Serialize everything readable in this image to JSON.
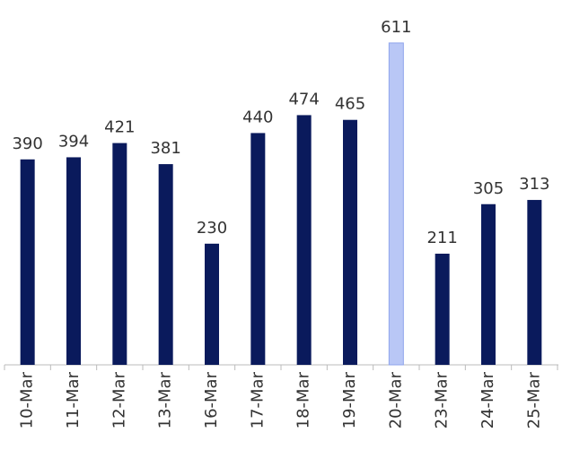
{
  "chart_data": {
    "type": "bar",
    "categories": [
      "10-Mar",
      "11-Mar",
      "12-Mar",
      "13-Mar",
      "16-Mar",
      "17-Mar",
      "18-Mar",
      "19-Mar",
      "20-Mar",
      "23-Mar",
      "24-Mar",
      "25-Mar"
    ],
    "values": [
      390,
      394,
      421,
      381,
      230,
      440,
      474,
      465,
      611,
      211,
      305,
      313
    ],
    "colors": [
      "#0a1a5c",
      "#0a1a5c",
      "#0a1a5c",
      "#0a1a5c",
      "#0a1a5c",
      "#0a1a5c",
      "#0a1a5c",
      "#0a1a5c",
      "#b9c7f6",
      "#0a1a5c",
      "#0a1a5c",
      "#0a1a5c"
    ],
    "ylim": [
      0,
      650
    ]
  }
}
